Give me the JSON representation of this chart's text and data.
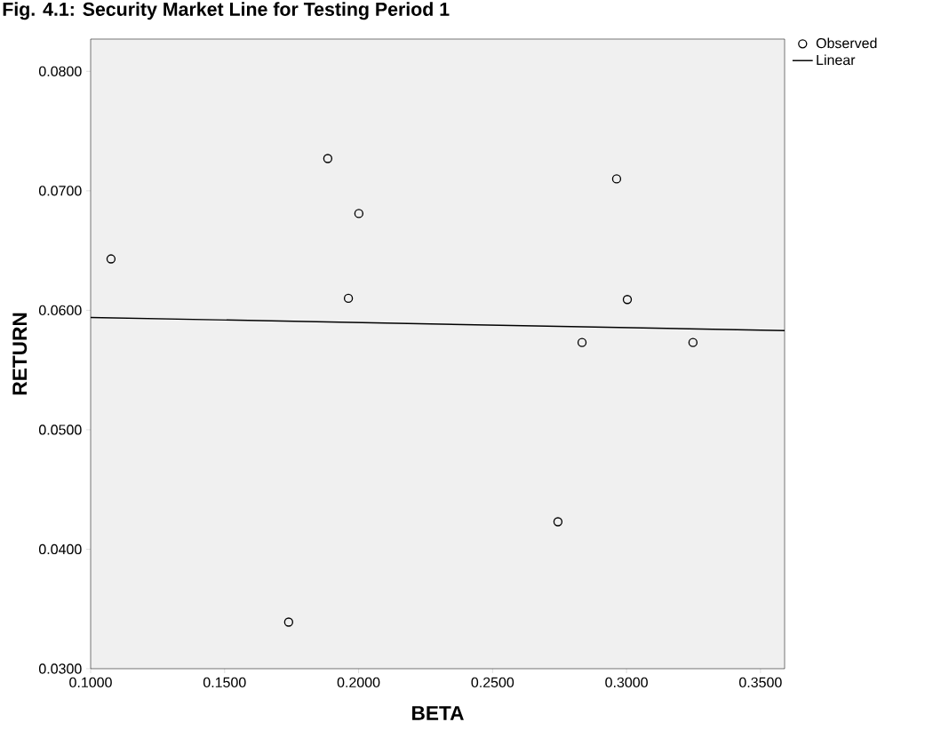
{
  "chart_data": {
    "type": "scatter",
    "title": "Fig. 4.1: Security Market Line for Testing Period 1",
    "xlabel": "BETA",
    "ylabel": "RETURN",
    "xlim": [
      0.1,
      0.359
    ],
    "ylim": [
      0.03,
      0.0827
    ],
    "xticks": [
      {
        "value": 0.1,
        "label": "0.1000"
      },
      {
        "value": 0.15,
        "label": "0.1500"
      },
      {
        "value": 0.2,
        "label": "0.2000"
      },
      {
        "value": 0.25,
        "label": "0.2500"
      },
      {
        "value": 0.3,
        "label": "0.3000"
      },
      {
        "value": 0.35,
        "label": "0.3500"
      }
    ],
    "yticks": [
      {
        "value": 0.03,
        "label": "0.0300"
      },
      {
        "value": 0.04,
        "label": "0.0400"
      },
      {
        "value": 0.05,
        "label": "0.0500"
      },
      {
        "value": 0.06,
        "label": "0.0600"
      },
      {
        "value": 0.07,
        "label": "0.0700"
      },
      {
        "value": 0.08,
        "label": "0.0800"
      }
    ],
    "grid": false,
    "legend": "right",
    "series": [
      {
        "name": "Observed",
        "marker": "circle",
        "color": "#000000",
        "x": [
          0.1076,
          0.1885,
          0.2001,
          0.1962,
          0.1739,
          0.2744,
          0.2834,
          0.2963,
          0.3003,
          0.3248
        ],
        "values": [
          0.0643,
          0.0727,
          0.0681,
          0.061,
          0.0339,
          0.0423,
          0.0573,
          0.071,
          0.0609,
          0.0573
        ]
      },
      {
        "name": "Linear",
        "type": "line",
        "marker": "none",
        "line_style": "solid",
        "color": "#000000",
        "x": [
          0.1,
          0.359
        ],
        "values": [
          0.0594,
          0.0583
        ]
      }
    ]
  }
}
